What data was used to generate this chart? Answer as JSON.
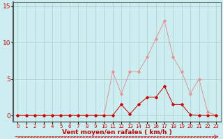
{
  "x": [
    0,
    1,
    2,
    3,
    4,
    5,
    6,
    7,
    8,
    9,
    10,
    11,
    12,
    13,
    14,
    15,
    16,
    17,
    18,
    19,
    20,
    21,
    22,
    23
  ],
  "y_rafales": [
    0,
    0,
    0,
    0,
    0,
    0,
    0,
    0,
    0,
    0,
    0,
    6,
    3,
    6,
    6,
    8,
    10.5,
    13,
    8,
    6,
    3,
    5,
    0.5,
    0
  ],
  "y_moyen": [
    0,
    0,
    0,
    0,
    0,
    0,
    0,
    0,
    0,
    0,
    0,
    0,
    1.5,
    0.2,
    1.5,
    2.5,
    2.5,
    4,
    1.5,
    1.5,
    0.1,
    0,
    0,
    0
  ],
  "bg_color": "#cceef0",
  "grid_color": "#aacccc",
  "line_color_rafales": "#e89090",
  "line_color_moyen": "#cc0000",
  "marker_color_rafales": "#e89090",
  "marker_color_moyen": "#cc0000",
  "xlabel": "Vent moyen/en rafales ( km/h )",
  "ylabel_ticks": [
    0,
    5,
    10,
    15
  ],
  "xlim": [
    -0.5,
    23.5
  ],
  "ylim": [
    -0.8,
    15.5
  ],
  "xlabel_color": "#cc0000",
  "tick_color": "#cc0000",
  "axis_color": "#888888",
  "dash_color": "#cc0000"
}
